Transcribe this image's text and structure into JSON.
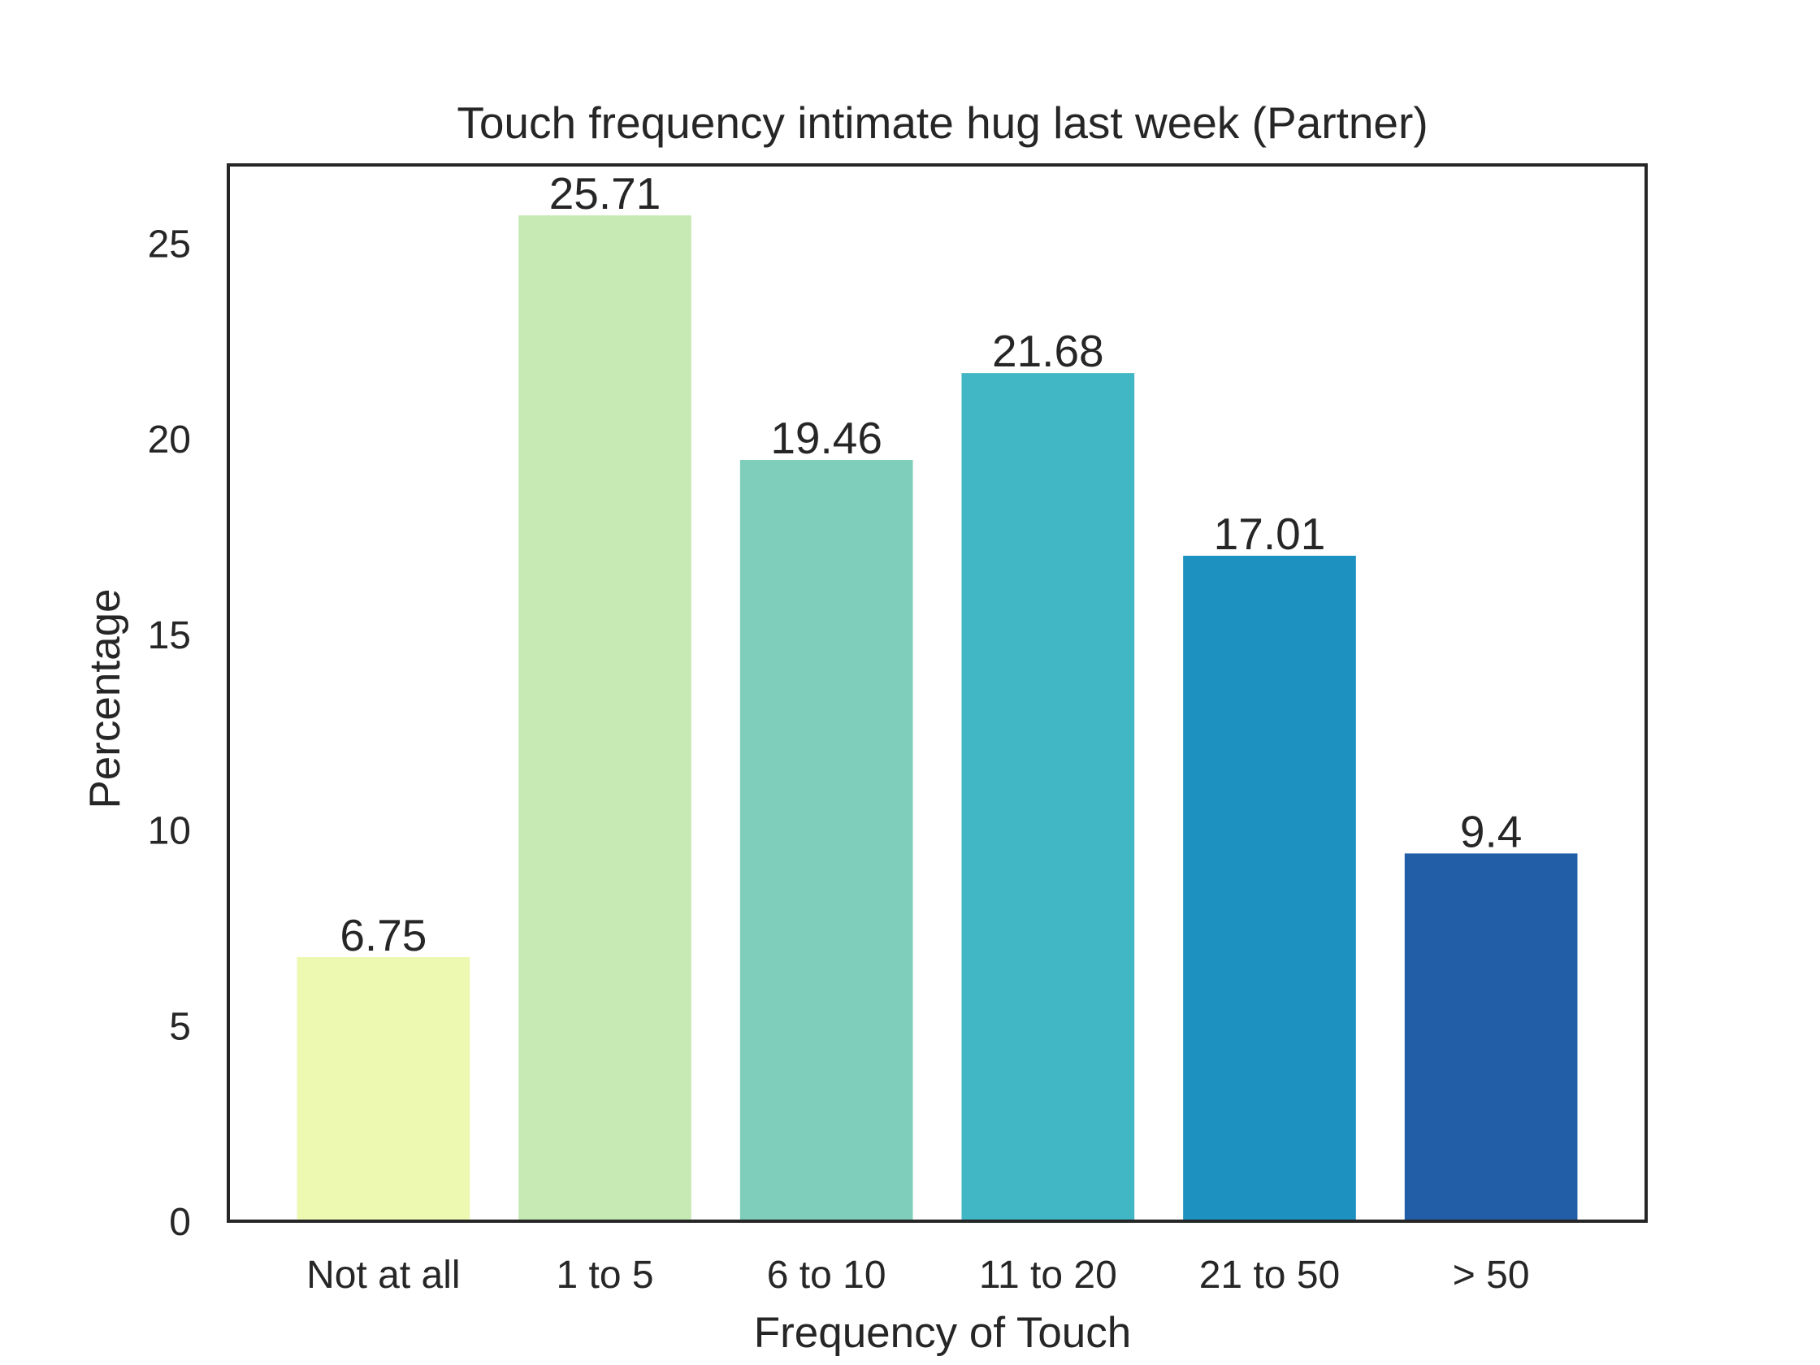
{
  "chart_data": {
    "type": "bar",
    "title": "Touch frequency intimate hug last week (Partner)",
    "xlabel": "Frequency of Touch",
    "ylabel": "Percentage",
    "categories": [
      "Not at all",
      "1 to 5",
      "6 to 10",
      "11 to 20",
      "21 to 50",
      "> 50"
    ],
    "values": [
      6.75,
      25.71,
      19.46,
      21.68,
      17.01,
      9.4
    ],
    "value_labels": [
      "6.75",
      "25.71",
      "19.46",
      "21.68",
      "17.01",
      "9.4"
    ],
    "colors": [
      "#edf8b1",
      "#c7e9b4",
      "#7fcdbb",
      "#41b6c4",
      "#1d91c0",
      "#225ea8"
    ],
    "ylim": [
      0,
      27
    ],
    "yticks": [
      0,
      5,
      10,
      15,
      20,
      25
    ],
    "grid": false,
    "legend": "none"
  }
}
